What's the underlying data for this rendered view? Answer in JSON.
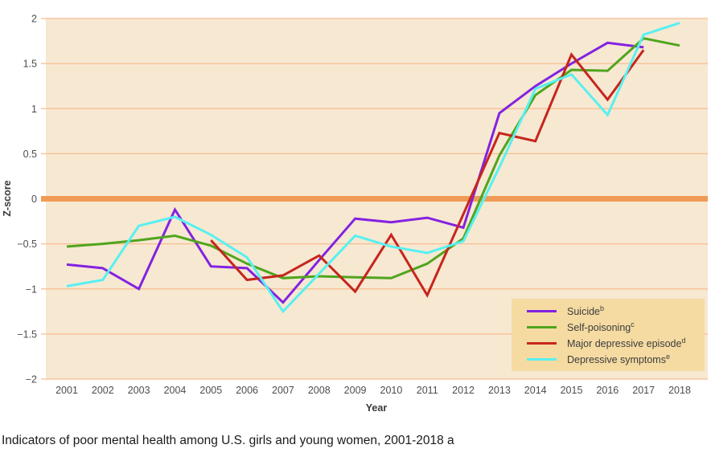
{
  "caption": "Indicators of poor mental health among U.S. girls and young women, 2001-2018 a",
  "colors": {
    "plot_bg": "#f7e8d2",
    "grid": "#f6bd8e",
    "zero_line": "#f09b55",
    "legend_bg": "#f5dba2",
    "tick_text": "#4d4d4d",
    "axis_title_text": "#3a3a3a",
    "caption_text": "#1a1a1a",
    "suicide": "#8322e0",
    "self_poisoning": "#4fa51d",
    "major_depressive_episode": "#c5261d",
    "depressive_symptoms": "#58f0f0"
  },
  "chart_data": {
    "type": "line",
    "title": "",
    "xlabel": "Year",
    "ylabel": "Z-score",
    "x": [
      2001,
      2002,
      2003,
      2004,
      2005,
      2006,
      2007,
      2008,
      2009,
      2010,
      2011,
      2012,
      2013,
      2014,
      2015,
      2016,
      2017,
      2018
    ],
    "x_tick_labels": [
      "2001",
      "2002",
      "2003",
      "2004",
      "2005",
      "2006",
      "2007",
      "2008",
      "2009",
      "2010",
      "2011",
      "2012",
      "2013",
      "2014",
      "2015",
      "2016",
      "2017",
      "2018"
    ],
    "ylim": [
      -2,
      2
    ],
    "y_ticks": [
      2,
      1.5,
      1,
      0.5,
      0,
      -0.5,
      -1,
      -1.5,
      -2
    ],
    "y_tick_labels": [
      "2",
      "1.5",
      "1",
      "0.5",
      "0",
      "−0.5",
      "−1",
      "−1.5",
      "−2"
    ],
    "grid": "horizontal lines every 0.5",
    "zero_line": true,
    "legend_position": "lower right",
    "series": [
      {
        "name": "Suicide",
        "sup": "b",
        "color_key": "suicide",
        "values": [
          -0.73,
          -0.77,
          -1.0,
          -0.12,
          -0.75,
          -0.77,
          -1.15,
          -0.68,
          -0.22,
          -0.26,
          -0.21,
          -0.32,
          0.95,
          1.25,
          1.5,
          1.73,
          1.68,
          null
        ]
      },
      {
        "name": "Self-poisoning",
        "sup": "c",
        "color_key": "self_poisoning",
        "values": [
          -0.53,
          -0.5,
          -0.46,
          -0.41,
          -0.52,
          -0.72,
          -0.88,
          -0.86,
          -0.87,
          -0.88,
          -0.72,
          -0.44,
          0.48,
          1.15,
          1.43,
          1.42,
          1.78,
          1.7
        ]
      },
      {
        "name": "Major depressive episode",
        "sup": "d",
        "color_key": "major_depressive_episode",
        "values": [
          null,
          null,
          null,
          null,
          -0.46,
          -0.9,
          -0.85,
          -0.63,
          -1.03,
          -0.4,
          -1.07,
          -0.17,
          0.73,
          0.64,
          1.6,
          1.1,
          1.65,
          null
        ]
      },
      {
        "name": "Depressive symptoms",
        "sup": "e",
        "color_key": "depressive_symptoms",
        "values": [
          -0.97,
          -0.9,
          -0.3,
          -0.2,
          -0.4,
          -0.65,
          -1.25,
          -0.83,
          -0.41,
          -0.53,
          -0.6,
          -0.47,
          0.35,
          1.22,
          1.38,
          0.93,
          1.82,
          1.95
        ]
      }
    ]
  }
}
